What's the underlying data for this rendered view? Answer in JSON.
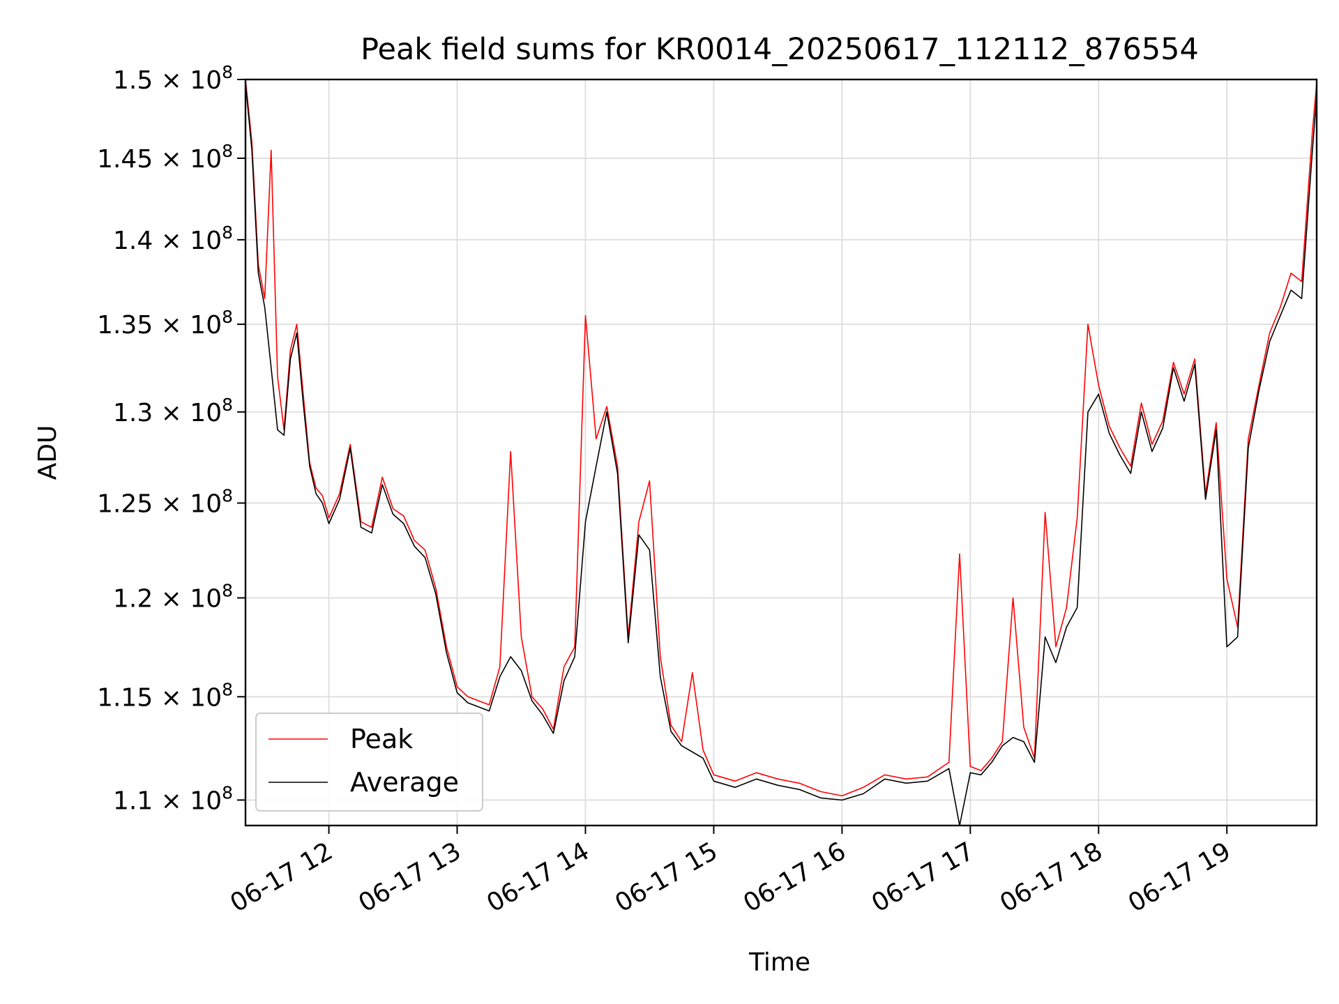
{
  "chart_data": {
    "type": "line",
    "title": "Peak field sums for KR0014_20250617_112112_876554",
    "xlabel": "Time",
    "ylabel": "ADU",
    "ylog": true,
    "ylim": [
      108800000,
      150000000
    ],
    "xlim": [
      "06-17 11:21",
      "06-17 19:42"
    ],
    "grid": true,
    "legend_position": "lower-left",
    "x_ticks": [
      "06-17 12",
      "06-17 13",
      "06-17 14",
      "06-17 15",
      "06-17 16",
      "06-17 17",
      "06-17 18",
      "06-17 19"
    ],
    "y_ticks": [
      {
        "value": 110000000,
        "mantissa": "1.1",
        "exp": "8"
      },
      {
        "value": 115000000,
        "mantissa": "1.15",
        "exp": "8"
      },
      {
        "value": 120000000,
        "mantissa": "1.2",
        "exp": "8"
      },
      {
        "value": 125000000,
        "mantissa": "1.25",
        "exp": "8"
      },
      {
        "value": 130000000,
        "mantissa": "1.3",
        "exp": "8"
      },
      {
        "value": 135000000,
        "mantissa": "1.35",
        "exp": "8"
      },
      {
        "value": 140000000,
        "mantissa": "1.4",
        "exp": "8"
      },
      {
        "value": 145000000,
        "mantissa": "1.45",
        "exp": "8"
      },
      {
        "value": 150000000,
        "mantissa": "1.5",
        "exp": "8"
      }
    ],
    "x": [
      "11:21",
      "11:24",
      "11:27",
      "11:30",
      "11:33",
      "11:36",
      "11:39",
      "11:42",
      "11:45",
      "11:48",
      "11:51",
      "11:54",
      "11:57",
      "12:00",
      "12:05",
      "12:10",
      "12:15",
      "12:20",
      "12:25",
      "12:30",
      "12:35",
      "12:40",
      "12:45",
      "12:50",
      "12:55",
      "13:00",
      "13:05",
      "13:10",
      "13:15",
      "13:20",
      "13:25",
      "13:30",
      "13:35",
      "13:40",
      "13:45",
      "13:50",
      "13:55",
      "14:00",
      "14:05",
      "14:10",
      "14:15",
      "14:20",
      "14:25",
      "14:30",
      "14:35",
      "14:40",
      "14:45",
      "14:50",
      "14:55",
      "15:00",
      "15:10",
      "15:20",
      "15:30",
      "15:40",
      "15:50",
      "16:00",
      "16:10",
      "16:20",
      "16:30",
      "16:40",
      "16:50",
      "16:55",
      "17:00",
      "17:05",
      "17:10",
      "17:15",
      "17:20",
      "17:25",
      "17:30",
      "17:35",
      "17:40",
      "17:45",
      "17:50",
      "17:55",
      "18:00",
      "18:05",
      "18:10",
      "18:15",
      "18:20",
      "18:25",
      "18:30",
      "18:35",
      "18:40",
      "18:45",
      "18:50",
      "18:55",
      "19:00",
      "19:05",
      "19:10",
      "19:15",
      "19:20",
      "19:25",
      "19:30",
      "19:35",
      "19:40",
      "19:42"
    ],
    "series": [
      {
        "name": "Peak",
        "color": "#ff0000",
        "values": [
          150000000,
          146000000,
          138500000,
          136500000,
          145500000,
          132000000,
          129000000,
          133500000,
          135000000,
          131000000,
          127200000,
          125800000,
          125400000,
          124200000,
          125500000,
          128200000,
          124000000,
          123700000,
          126400000,
          124700000,
          124300000,
          123000000,
          122500000,
          120500000,
          117500000,
          115500000,
          115000000,
          114800000,
          114600000,
          116500000,
          127800000,
          118000000,
          115000000,
          114400000,
          113400000,
          116500000,
          117500000,
          135500000,
          128500000,
          130300000,
          127000000,
          118000000,
          124000000,
          126200000,
          117000000,
          113600000,
          112800000,
          116200000,
          112400000,
          111200000,
          110900000,
          111300000,
          111000000,
          110800000,
          110400000,
          110200000,
          110600000,
          111200000,
          111000000,
          111100000,
          111800000,
          122300000,
          111600000,
          111400000,
          112000000,
          112800000,
          120000000,
          113500000,
          112000000,
          124500000,
          117500000,
          119500000,
          124200000,
          135000000,
          131500000,
          129200000,
          128000000,
          127000000,
          130500000,
          128200000,
          129500000,
          132800000,
          131000000,
          133000000,
          125500000,
          129400000,
          121000000,
          118500000,
          128500000,
          131500000,
          134500000,
          136000000,
          138000000,
          137500000,
          146700000,
          149800000
        ]
      },
      {
        "name": "Average",
        "color": "#000000",
        "values": [
          149800000,
          145500000,
          138000000,
          136000000,
          132500000,
          129000000,
          128700000,
          133000000,
          134500000,
          130500000,
          127000000,
          125500000,
          125000000,
          123900000,
          125200000,
          128000000,
          123700000,
          123400000,
          126000000,
          124400000,
          123900000,
          122700000,
          122100000,
          120200000,
          117200000,
          115200000,
          114700000,
          114500000,
          114300000,
          116000000,
          117000000,
          116300000,
          114800000,
          114100000,
          113200000,
          115800000,
          117000000,
          124000000,
          127000000,
          130000000,
          126600000,
          117700000,
          123300000,
          122500000,
          116000000,
          113300000,
          112600000,
          112300000,
          112000000,
          110900000,
          110600000,
          111000000,
          110700000,
          110500000,
          110100000,
          110000000,
          110300000,
          111000000,
          110800000,
          110900000,
          111500000,
          108800000,
          111300000,
          111200000,
          111800000,
          112600000,
          113000000,
          112800000,
          111800000,
          118000000,
          116700000,
          118500000,
          119500000,
          130000000,
          131000000,
          128800000,
          127600000,
          126600000,
          130000000,
          127800000,
          129100000,
          132500000,
          130600000,
          132700000,
          125200000,
          129000000,
          117500000,
          118000000,
          128000000,
          131200000,
          134000000,
          135500000,
          137000000,
          136500000,
          145500000,
          149000000
        ]
      }
    ]
  }
}
